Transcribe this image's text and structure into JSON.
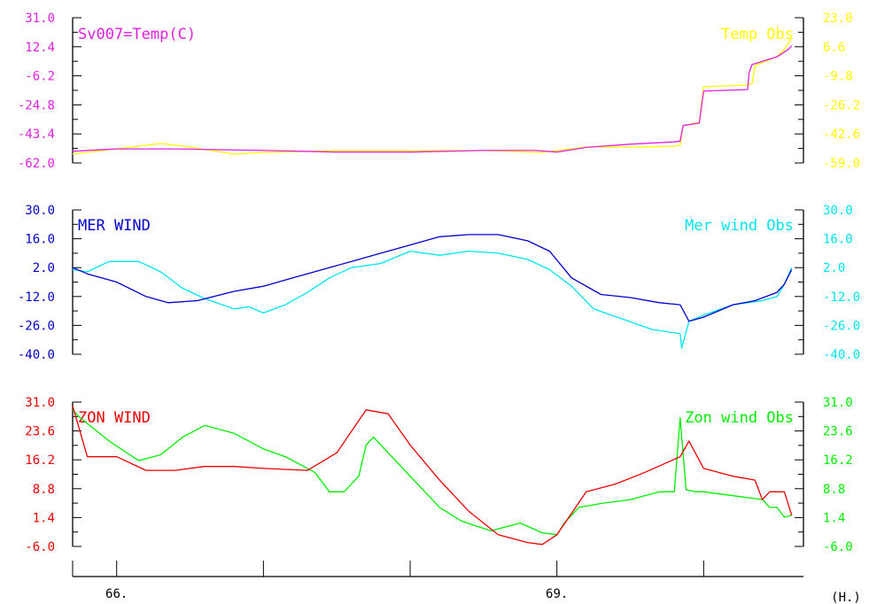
{
  "chart_data": [
    {
      "type": "line",
      "panel": "temperature",
      "title": "Sv007=Temp(C)",
      "title_color": "#e020e0",
      "obs_label": "Temp Obs",
      "obs_color": "#ffff00",
      "left_ticks": [
        "31.0",
        "12.4",
        "-6.2",
        "-24.8",
        "-43.4",
        "-62.0"
      ],
      "right_ticks": [
        "23.0",
        "6.6",
        "-9.8",
        "-26.2",
        "-42.6",
        "-59.0"
      ],
      "ylim_left": [
        -62,
        31
      ],
      "ylim_right": [
        -59,
        23
      ],
      "series": [
        {
          "name": "Sv007=Temp(C)",
          "color": "#e020e0",
          "axis": "left",
          "x": [
            65.55,
            66.0,
            66.4,
            67.0,
            67.5,
            68.0,
            68.5,
            68.85,
            69.0,
            69.2,
            69.5,
            69.8,
            69.84,
            69.86,
            69.97,
            70.0,
            70.3,
            70.31,
            70.33,
            70.5,
            70.55,
            70.58,
            70.6
          ],
          "y": [
            -54.5,
            -53.0,
            -53.0,
            -54.0,
            -55.0,
            -55.0,
            -54.0,
            -54.0,
            -55.0,
            -52.0,
            -50.0,
            -48.5,
            -48.0,
            -38.0,
            -36.5,
            -16.0,
            -15.0,
            -4.0,
            1.0,
            6.0,
            9.0,
            11.0,
            13.0
          ]
        },
        {
          "name": "Temp Obs",
          "color": "#ffff00",
          "axis": "right",
          "x": [
            65.55,
            65.7,
            65.9,
            66.1,
            66.3,
            66.5,
            66.8,
            67.0,
            67.5,
            68.0,
            68.5,
            68.9,
            69.0,
            69.2,
            69.4,
            69.6,
            69.8,
            69.84,
            69.86,
            69.97,
            70.0,
            70.3,
            70.33,
            70.35,
            70.5,
            70.55,
            70.58,
            70.6
          ],
          "y": [
            -54.0,
            -54.0,
            -52.0,
            -50.0,
            -48.0,
            -50.0,
            -54.0,
            -53.0,
            -52.0,
            -52.0,
            -52.0,
            -53.0,
            -52.0,
            -50.0,
            -50.0,
            -50.0,
            -49.5,
            -49.0,
            -38.0,
            -36.0,
            -16.0,
            -15.0,
            -14.0,
            -4.0,
            1.0,
            5.0,
            9.0,
            12.0
          ]
        }
      ]
    },
    {
      "type": "line",
      "panel": "meridional-wind",
      "title": "MER WIND",
      "title_color": "#0000cc",
      "obs_label": "Mer wind Obs",
      "obs_color": "#00e5ee",
      "left_ticks": [
        "30.0",
        "16.0",
        "2.0",
        "-12.0",
        "-26.0",
        "-40.0"
      ],
      "right_ticks": [
        "30.0",
        "16.0",
        "2.0",
        "-12.0",
        "-26.0",
        "-40.0"
      ],
      "ylim_left": [
        -40,
        30
      ],
      "ylim_right": [
        -40,
        30
      ],
      "series": [
        {
          "name": "MER WIND",
          "color": "#0000cc",
          "axis": "left",
          "x": [
            65.55,
            65.8,
            66.0,
            66.2,
            66.35,
            66.55,
            66.8,
            67.0,
            67.2,
            67.4,
            67.6,
            67.8,
            68.0,
            68.2,
            68.4,
            68.6,
            68.8,
            68.95,
            69.1,
            69.3,
            69.5,
            69.7,
            69.84,
            69.9,
            70.0,
            70.2,
            70.35,
            70.5,
            70.55,
            70.6
          ],
          "y": [
            2.0,
            -1.0,
            -5.0,
            -12.0,
            -15.0,
            -14.0,
            -9.5,
            -7.0,
            -3.0,
            1.0,
            5.0,
            9.0,
            13.0,
            17.0,
            18.0,
            18.0,
            15.0,
            10.0,
            -3.0,
            -11.0,
            -12.5,
            -15.0,
            -16.0,
            -24.0,
            -22.0,
            -16.0,
            -14.0,
            -10.0,
            -6.0,
            1.0
          ]
        },
        {
          "name": "Mer wind Obs",
          "color": "#00e5ee",
          "axis": "right",
          "x": [
            65.55,
            65.8,
            65.95,
            66.15,
            66.3,
            66.45,
            66.6,
            66.8,
            66.9,
            67.0,
            67.15,
            67.3,
            67.45,
            67.6,
            67.8,
            68.0,
            68.2,
            68.4,
            68.6,
            68.8,
            68.95,
            69.1,
            69.25,
            69.45,
            69.65,
            69.84,
            69.85,
            69.9,
            70.0,
            70.2,
            70.4,
            70.5,
            70.55,
            70.6
          ],
          "y": [
            1.0,
            0.0,
            5.0,
            5.0,
            0.0,
            -8.0,
            -13.0,
            -18.0,
            -17.0,
            -20.0,
            -16.0,
            -10.0,
            -3.0,
            2.0,
            4.0,
            10.0,
            8.0,
            10.0,
            9.0,
            6.0,
            1.0,
            -7.0,
            -18.0,
            -23.0,
            -28.0,
            -30.0,
            -37.0,
            -24.0,
            -21.0,
            -16.0,
            -14.0,
            -12.0,
            -6.0,
            2.0
          ]
        }
      ]
    },
    {
      "type": "line",
      "panel": "zonal-wind",
      "title": "ZON WIND",
      "title_color": "#ee0000",
      "obs_label": "Zon wind Obs",
      "obs_color": "#00ee00",
      "left_ticks": [
        "31.0",
        "23.6",
        "16.2",
        "8.8",
        "1.4",
        "-6.0"
      ],
      "right_ticks": [
        "31.0",
        "23.6",
        "16.2",
        "8.8",
        "1.4",
        "-6.0"
      ],
      "ylim_left": [
        -6,
        31
      ],
      "ylim_right": [
        -6,
        31
      ],
      "series": [
        {
          "name": "ZON WIND",
          "color": "#ee0000",
          "axis": "left",
          "x": [
            65.55,
            65.8,
            66.0,
            66.2,
            66.4,
            66.6,
            66.8,
            67.0,
            67.3,
            67.5,
            67.7,
            67.85,
            68.0,
            68.2,
            68.4,
            68.6,
            68.8,
            68.9,
            69.0,
            69.2,
            69.4,
            69.6,
            69.84,
            69.9,
            70.0,
            70.2,
            70.35,
            70.4,
            70.45,
            70.55,
            70.6
          ],
          "y": [
            30.0,
            17.0,
            17.0,
            13.5,
            13.5,
            14.5,
            14.5,
            14.0,
            13.5,
            18.0,
            29.0,
            28.0,
            20.0,
            11.0,
            3.0,
            -3.0,
            -5.0,
            -5.5,
            -3.0,
            8.0,
            10.0,
            13.0,
            17.0,
            21.0,
            14.0,
            12.0,
            11.0,
            6.0,
            8.0,
            8.0,
            2.0
          ]
        },
        {
          "name": "Zon wind Obs",
          "color": "#00ee00",
          "axis": "right",
          "x": [
            65.55,
            65.75,
            65.95,
            66.15,
            66.3,
            66.45,
            66.6,
            66.8,
            67.0,
            67.15,
            67.35,
            67.45,
            67.55,
            67.65,
            67.7,
            67.75,
            67.85,
            68.0,
            68.2,
            68.35,
            68.55,
            68.75,
            68.9,
            69.0,
            69.05,
            69.15,
            69.3,
            69.5,
            69.7,
            69.8,
            69.84,
            69.88,
            69.95,
            70.0,
            70.2,
            70.4,
            70.45,
            70.5,
            70.55,
            70.6
          ],
          "y": [
            29.0,
            27.0,
            21.0,
            16.0,
            17.5,
            22.0,
            25.0,
            23.0,
            19.0,
            17.0,
            13.0,
            8.0,
            8.0,
            12.0,
            20.0,
            22.0,
            18.0,
            12.0,
            4.0,
            0.5,
            -2.0,
            0.0,
            -2.5,
            -3.0,
            0.0,
            4.0,
            5.0,
            6.0,
            8.0,
            8.0,
            27.0,
            8.5,
            8.0,
            8.0,
            7.0,
            6.0,
            4.0,
            4.0,
            1.5,
            2.0
          ]
        }
      ]
    },
    {
      "type": "axis",
      "panel": "time-axis",
      "x_tick_labels": [
        {
          "label": "66.",
          "value": 66.0
        },
        {
          "label": "69.",
          "value": 69.0
        }
      ],
      "x_minor_ticks": [
        66.0,
        67.0,
        68.0,
        69.0,
        70.0
      ],
      "x_unit": "(H.)",
      "xlim": [
        65.7,
        70.68
      ]
    }
  ]
}
